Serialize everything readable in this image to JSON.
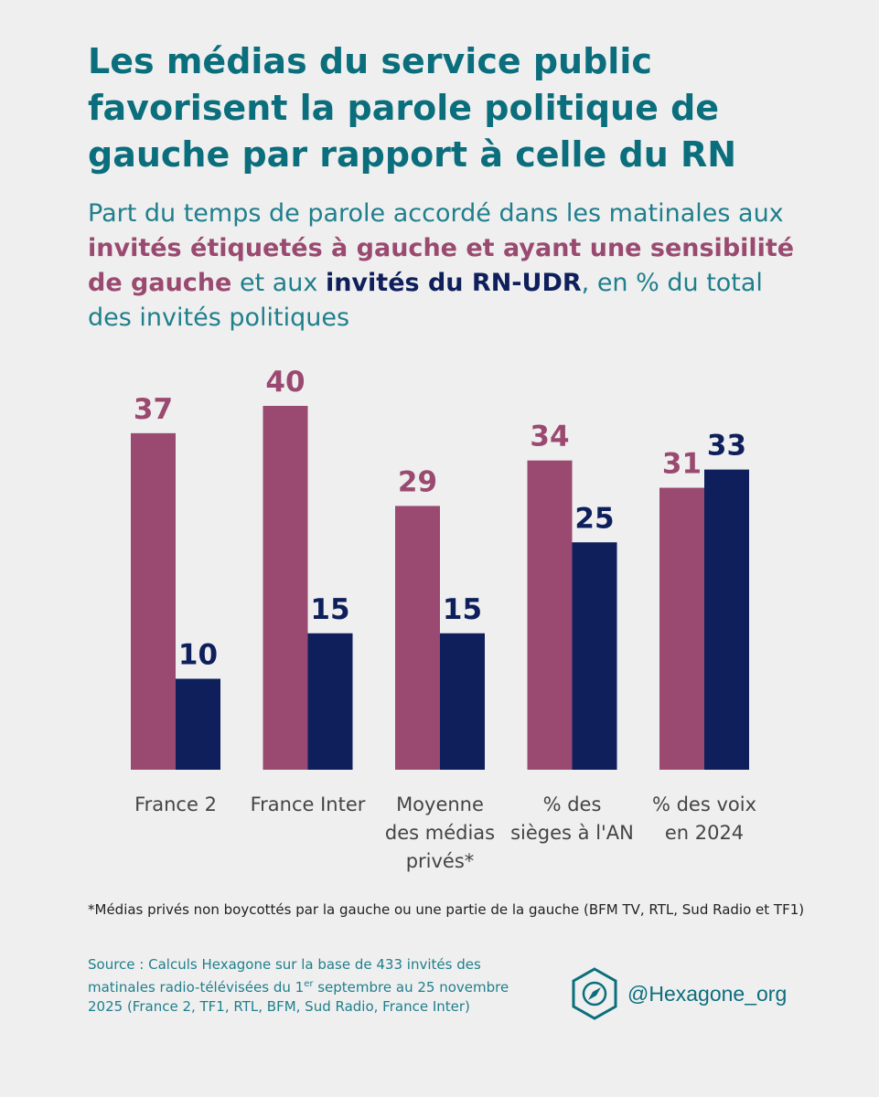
{
  "title": "Les médias du service public favorisent la parole politique de gauche par rapport à celle du RN",
  "subtitle": {
    "part1": "Part du temps de parole accordé dans les matinales aux ",
    "highlight_gauche": "invités étiquetés à gauche et ayant une sensibilité de gauche",
    "part2": " et aux ",
    "highlight_rn": "invités du RN-UDR",
    "part3": ", en % du total des invités politiques"
  },
  "colors": {
    "gauche": "#9a4a70",
    "rn": "#0e1f5c",
    "title": "#0b6e7c",
    "subtitle": "#1f7f8c",
    "background": "#efefef"
  },
  "chart_data": {
    "type": "bar",
    "categories": [
      [
        "France 2"
      ],
      [
        "France Inter"
      ],
      [
        "Moyenne",
        "des médias",
        "privés*"
      ],
      [
        "% des",
        "sièges à l'AN"
      ],
      [
        "% des voix",
        "en 2024"
      ]
    ],
    "series": [
      {
        "values": [
          37,
          40,
          29,
          34,
          31
        ],
        "color": "#9a4a70"
      },
      {
        "values": [
          10,
          15,
          15,
          25,
          33
        ],
        "color": "#0e1f5c"
      }
    ],
    "data_labels": true,
    "grid": false,
    "legend": "none"
  },
  "footnote": "*Médias privés non boycottés par la gauche ou une partie de la gauche (BFM TV, RTL, Sud Radio et TF1)",
  "source": {
    "part1": "Source : Calculs Hexagone sur la base de 433 invités des matinales radio-télévisées du 1",
    "sup": "er",
    "part2": " septembre au 25 novembre 2025 (France 2, TF1, RTL, BFM, Sud Radio, France Inter)"
  },
  "brand": {
    "icon": "hexagon-compass-icon",
    "handle": "@Hexagone_org"
  }
}
